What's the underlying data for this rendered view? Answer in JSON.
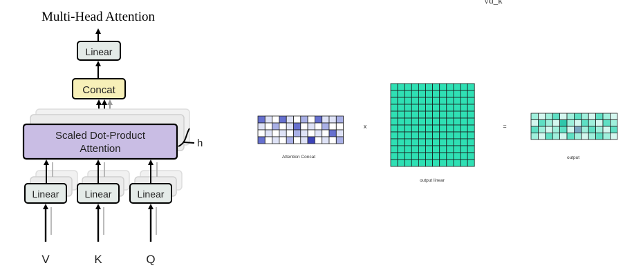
{
  "left_diagram": {
    "title": "Multi-Head Attention",
    "blocks": {
      "linear_top": "Linear",
      "concat": "Concat",
      "sdpa_line1": "Scaled Dot-Product",
      "sdpa_line2": "Attention",
      "linear_v": "Linear",
      "linear_k": "Linear",
      "linear_q": "Linear"
    },
    "heads_label": "h",
    "inputs": [
      "V",
      "K",
      "Q"
    ],
    "colors": {
      "linear_fill": "#e4ebe8",
      "concat_fill": "#f7f0b8",
      "attention_fill": "#c9bde4",
      "ghost_fill": "#f1f1f1"
    }
  },
  "right_diagram": {
    "top_fragment": "√d_k",
    "labels": {
      "attention_concat": "Attention Concat",
      "output_linear": "output linear",
      "output": "output"
    },
    "operators": {
      "times": "x",
      "equals": "="
    },
    "attention_concat_grid": {
      "rows": 4,
      "cols": 12,
      "colors": {
        "0": "#ffffff",
        "1": "#dfe3f7",
        "2": "#a9b0e6",
        "3": "#6670cf",
        "4": "#3d44b8"
      },
      "cells": [
        [
          3,
          1,
          0,
          3,
          1,
          0,
          2,
          0,
          3,
          1,
          1,
          2
        ],
        [
          1,
          0,
          2,
          0,
          1,
          3,
          0,
          1,
          0,
          2,
          0,
          0
        ],
        [
          0,
          1,
          0,
          1,
          0,
          2,
          1,
          0,
          1,
          0,
          3,
          1
        ],
        [
          3,
          0,
          1,
          0,
          2,
          0,
          1,
          4,
          0,
          1,
          0,
          2
        ]
      ]
    },
    "output_linear_grid": {
      "rows": 12,
      "cols": 12,
      "color": "#2fe0b4"
    },
    "output_grid": {
      "rows": 4,
      "cols": 12,
      "colors": {
        "0": "#d4f7ef",
        "1": "#9ff0dc",
        "2": "#5ee0c4",
        "3": "#2ec7ab",
        "4": "#7aa6c2"
      },
      "cells": [
        [
          1,
          0,
          1,
          2,
          0,
          1,
          2,
          1,
          0,
          2,
          1,
          0
        ],
        [
          0,
          2,
          1,
          0,
          3,
          1,
          0,
          2,
          1,
          0,
          2,
          1
        ],
        [
          2,
          1,
          0,
          1,
          2,
          0,
          4,
          1,
          2,
          1,
          0,
          2
        ],
        [
          1,
          0,
          2,
          1,
          0,
          2,
          1,
          0,
          1,
          2,
          1,
          0
        ]
      ]
    }
  }
}
